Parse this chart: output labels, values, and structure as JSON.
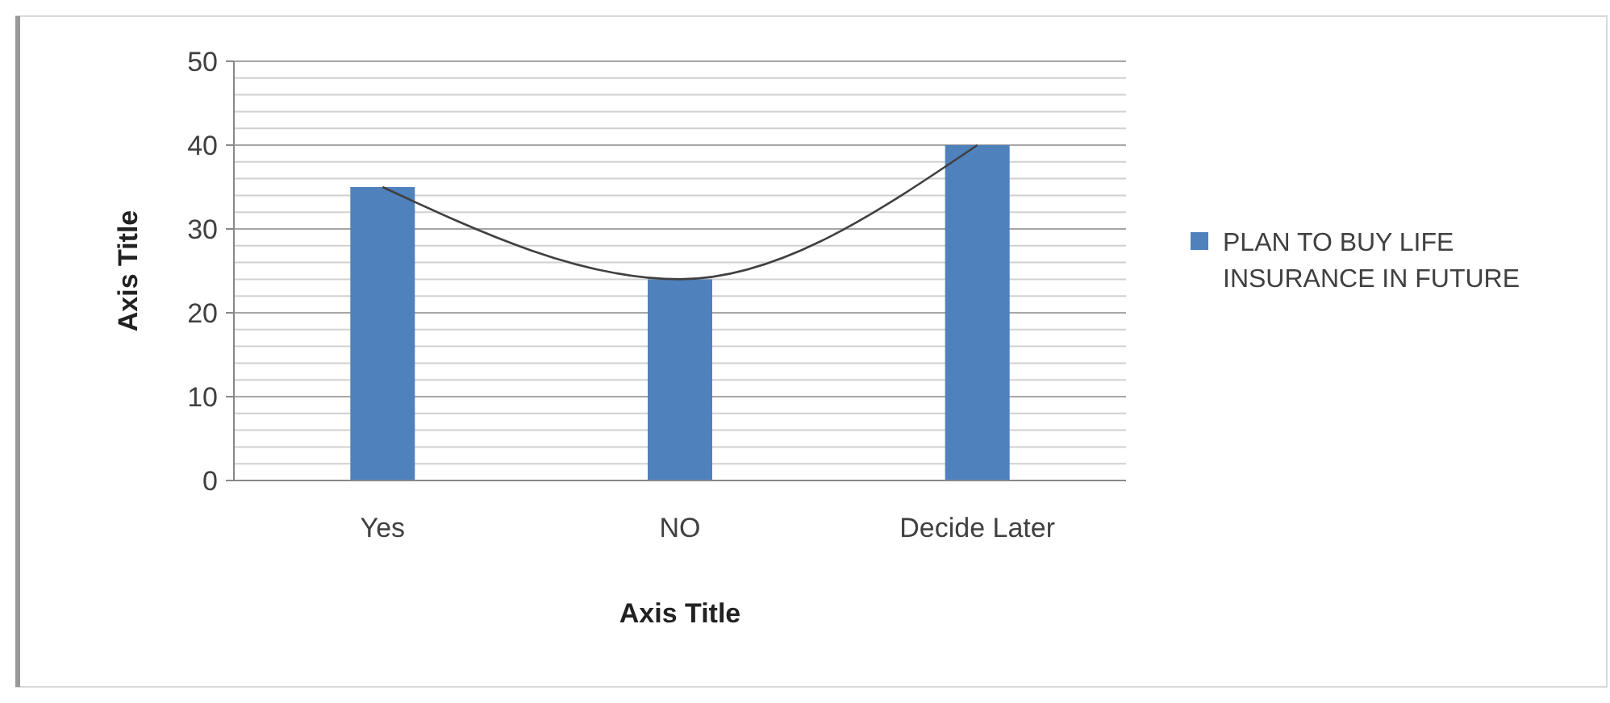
{
  "chart_data": {
    "type": "bar",
    "xlabel": "Axis Title",
    "ylabel": "Axis Title",
    "categories": [
      "Yes",
      "NO",
      "Decide Later"
    ],
    "series": [
      {
        "name": "PLAN TO BUY LIFE INSURANCE IN FUTURE",
        "color": "#4f81bd",
        "values": [
          35,
          24,
          40
        ]
      },
      {
        "type": "line",
        "color": "#404040",
        "values": [
          35,
          24,
          40
        ]
      }
    ],
    "ylim": [
      0,
      50
    ],
    "yticks": [
      0,
      {
        "value": 2,
        "label": null
      },
      {
        "value": 4,
        "label": null
      },
      {
        "value": 6,
        "label": null
      },
      {
        "value": 8,
        "label": null
      },
      10,
      {
        "value": 12,
        "label": null
      },
      {
        "value": 14,
        "label": null
      },
      {
        "value": 16,
        "label": null
      },
      {
        "value": 18,
        "label": null
      },
      20,
      {
        "value": 22,
        "label": null
      },
      {
        "value": 24,
        "label": null
      },
      {
        "value": 26,
        "label": null
      },
      {
        "value": 28,
        "label": null
      },
      30,
      {
        "value": 32,
        "label": null
      },
      {
        "value": 34,
        "label": null
      },
      {
        "value": 36,
        "label": null
      },
      {
        "value": 38,
        "label": null
      },
      40,
      {
        "value": 42,
        "label": null
      },
      {
        "value": 44,
        "label": null
      },
      {
        "value": 46,
        "label": null
      },
      {
        "value": 48,
        "label": null
      },
      50
    ],
    "grid": true,
    "legend": "right"
  }
}
